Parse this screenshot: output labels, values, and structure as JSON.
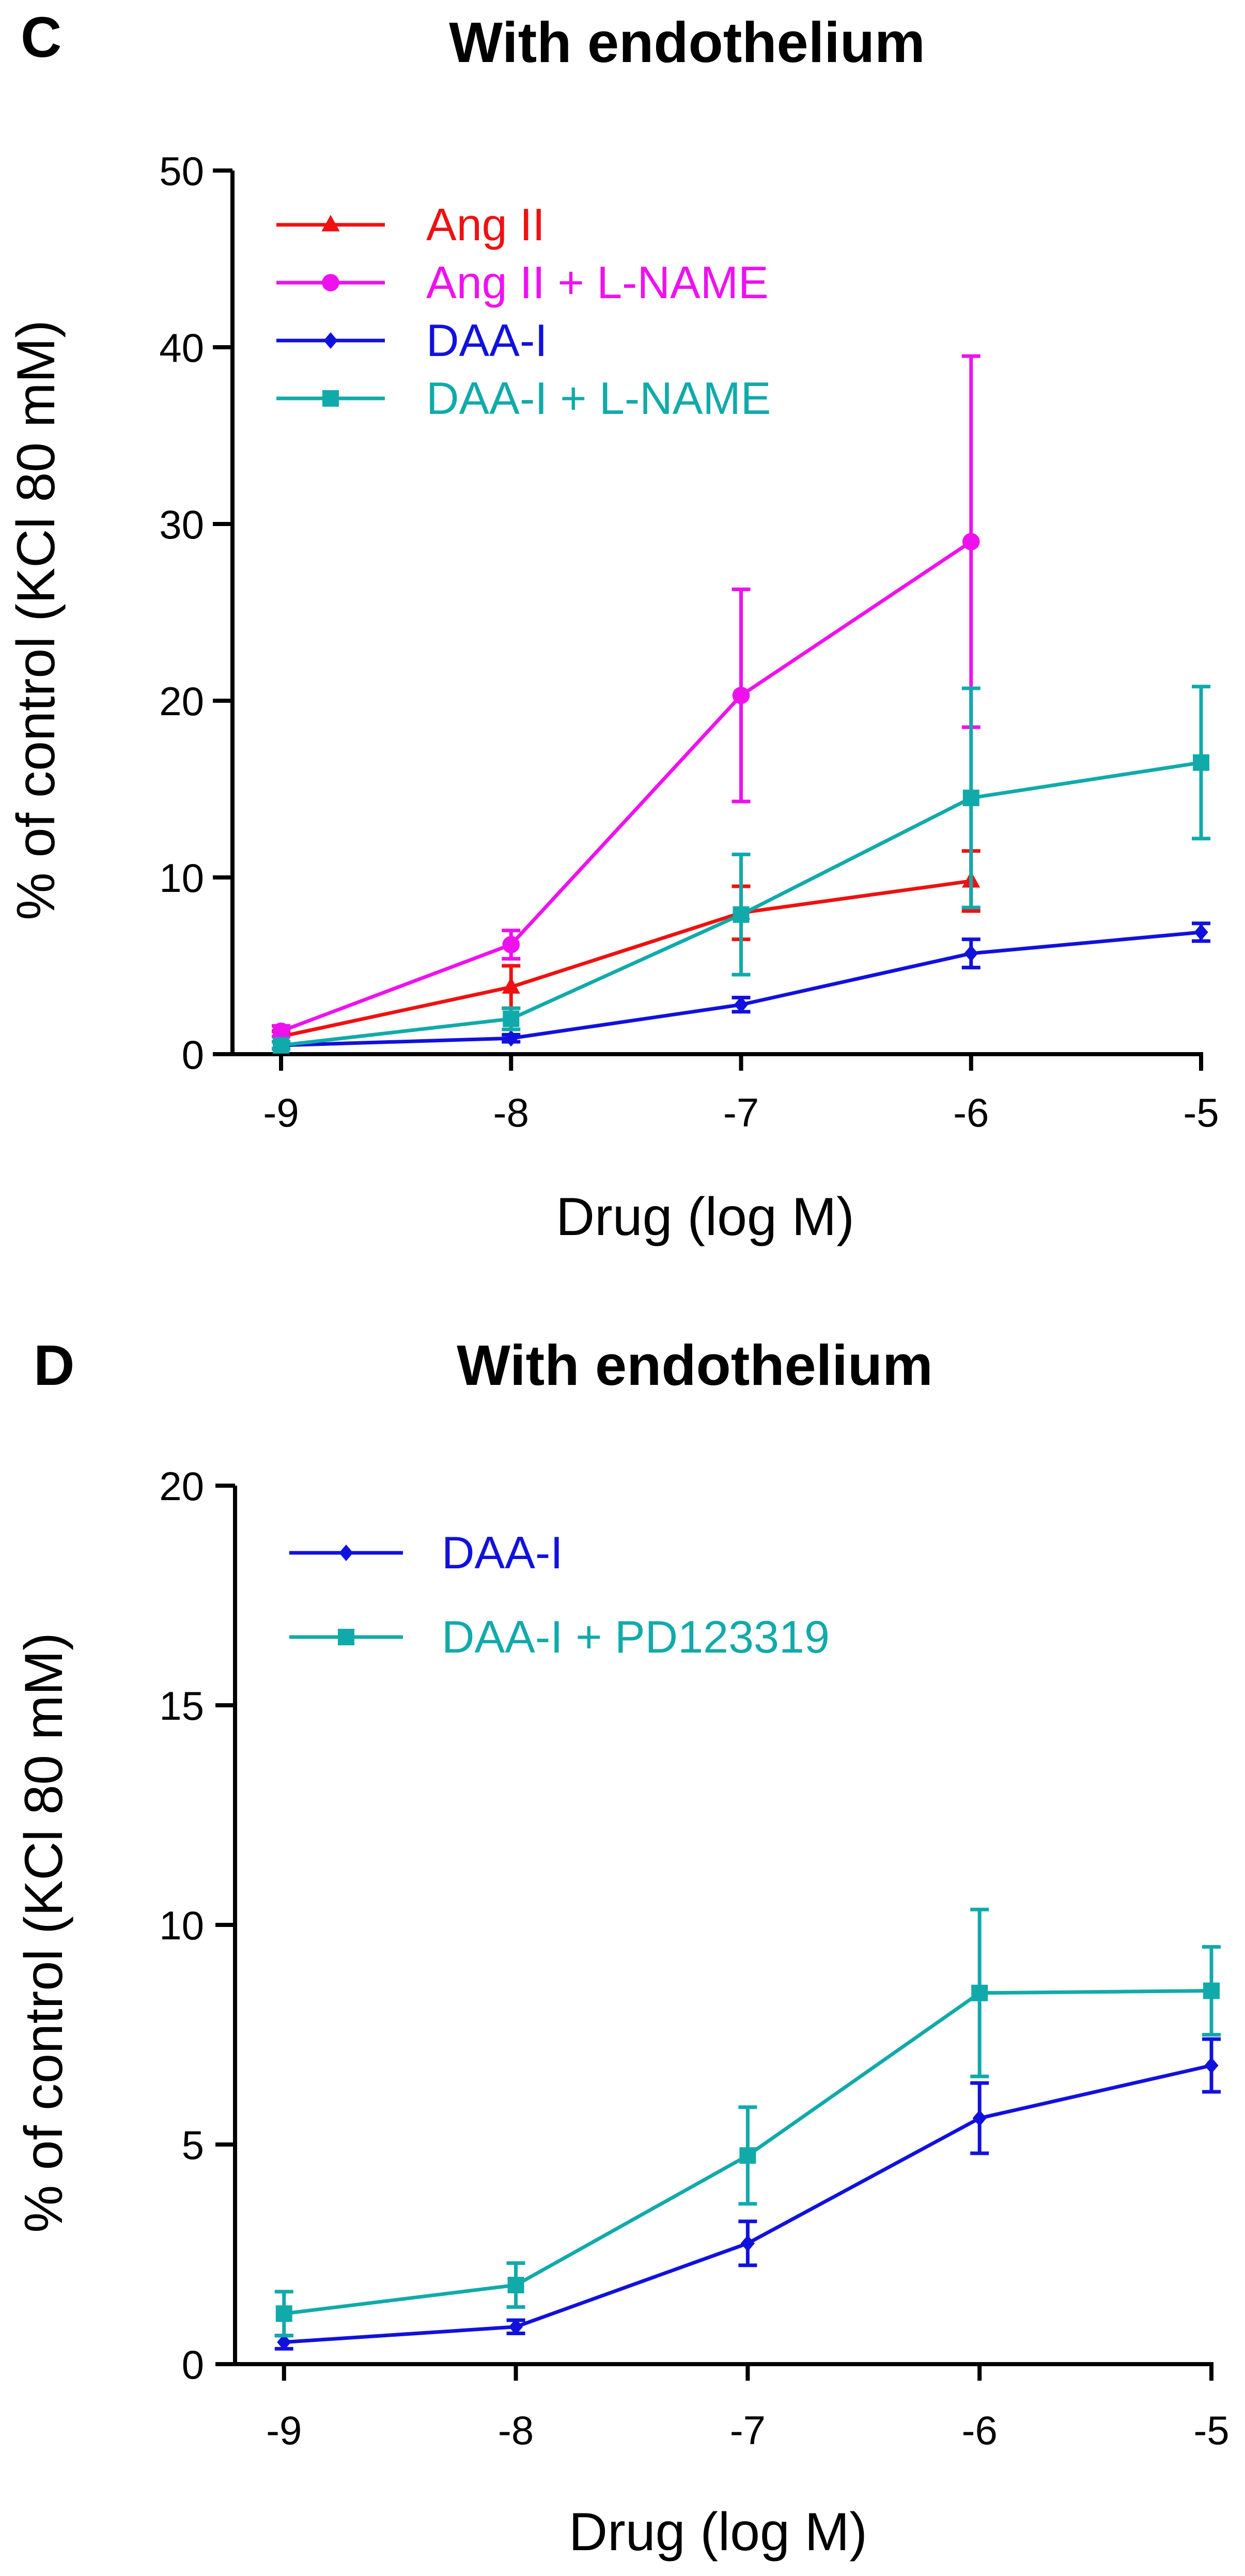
{
  "chart_data": [
    {
      "type": "line",
      "panel_label": "C",
      "title": "With endothelium",
      "xlabel": "Drug (log M)",
      "ylabel": "% of control (KCl 80 mM)",
      "xlim": [
        -9.2,
        -5
      ],
      "ylim": [
        0,
        50
      ],
      "xticks": [
        -9,
        -8,
        -7,
        -6,
        -5
      ],
      "xtick_labels": [
        "-9",
        "-8",
        "-7",
        "-6",
        "-5"
      ],
      "yticks": [
        0,
        10,
        20,
        30,
        40,
        50
      ],
      "ytick_labels": [
        "0",
        "10",
        "20",
        "30",
        "40",
        "50"
      ],
      "grid": false,
      "legend_position": "top-left",
      "series": [
        {
          "name": "Ang II",
          "color": "#ee1111",
          "marker": "triangle",
          "x": [
            -9,
            -8,
            -7,
            -6
          ],
          "y": [
            1.0,
            3.8,
            8.0,
            9.8
          ],
          "err": [
            0.3,
            1.2,
            1.5,
            1.7
          ]
        },
        {
          "name": "Ang II + L-NAME",
          "color": "#ee11ee",
          "marker": "circle",
          "x": [
            -9,
            -8,
            -7,
            -6
          ],
          "y": [
            1.3,
            6.2,
            20.3,
            29.0
          ],
          "err": [
            0.3,
            0.8,
            6.0,
            10.5
          ]
        },
        {
          "name": "DAA-I",
          "color": "#1111dd",
          "marker": "diamond",
          "x": [
            -9,
            -8,
            -7,
            -6,
            -5
          ],
          "y": [
            0.5,
            0.9,
            2.8,
            5.7,
            6.9
          ],
          "err": [
            0.2,
            0.2,
            0.4,
            0.8,
            0.5
          ]
        },
        {
          "name": "DAA-I + L-NAME",
          "color": "#11aaaa",
          "marker": "square",
          "x": [
            -9,
            -8,
            -7,
            -6,
            -5
          ],
          "y": [
            0.5,
            2.0,
            7.9,
            14.5,
            16.5
          ],
          "err": [
            0.2,
            0.6,
            3.4,
            6.2,
            4.3
          ]
        }
      ]
    },
    {
      "type": "line",
      "panel_label": "D",
      "title": "With endothelium",
      "xlabel": "Drug (log M)",
      "ylabel": "% of control (KCl 80 mM)",
      "xlim": [
        -9.2,
        -5
      ],
      "ylim": [
        0,
        20
      ],
      "xticks": [
        -9,
        -8,
        -7,
        -6,
        -5
      ],
      "xtick_labels": [
        "-9",
        "-8",
        "-7",
        "-6",
        "-5"
      ],
      "yticks": [
        0,
        5,
        10,
        15,
        20
      ],
      "ytick_labels": [
        "0",
        "5",
        "10",
        "15",
        "20"
      ],
      "grid": false,
      "legend_position": "top-left",
      "series": [
        {
          "name": "DAA-I",
          "color": "#1111dd",
          "marker": "diamond",
          "x": [
            -9,
            -8,
            -7,
            -6,
            -5
          ],
          "y": [
            0.5,
            0.85,
            2.75,
            5.6,
            6.8
          ],
          "err": [
            0.15,
            0.15,
            0.5,
            0.8,
            0.6
          ]
        },
        {
          "name": "DAA-I + PD123319",
          "color": "#11aaaa",
          "marker": "square",
          "x": [
            -9,
            -8,
            -7,
            -6,
            -5
          ],
          "y": [
            1.15,
            1.8,
            4.75,
            8.45,
            8.5
          ],
          "err": [
            0.5,
            0.5,
            1.1,
            1.9,
            1.0
          ]
        }
      ]
    }
  ]
}
